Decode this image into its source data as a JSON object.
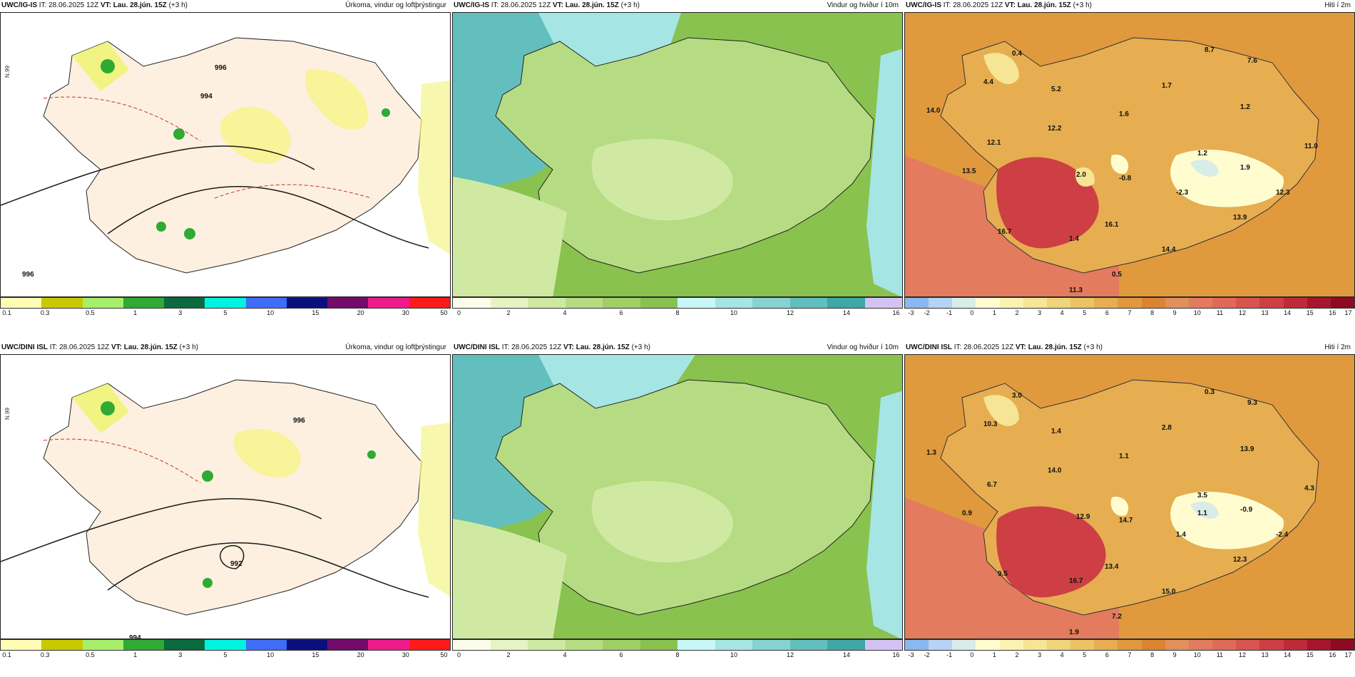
{
  "rows": [
    {
      "model": "UWC/IG-IS",
      "it": "IT: 28.06.2025 12Z",
      "vt": "VT: Lau. 28.jún. 15Z",
      "lead": "(+3 h)",
      "precip_title": "Úrkoma, vindur og loftþrýstingur",
      "wind_title": "Vindur og hviður í 10m",
      "temp_title": "Hiti í 2m",
      "pressure_labels": [
        "994",
        "996",
        "996"
      ],
      "temp_labels": [
        "0.4",
        "8.7",
        "7.6",
        "4.4",
        "5.2",
        "1.7",
        "14.0",
        "1.6",
        "1.2",
        "12.2",
        "12.1",
        "1.2",
        "11.0",
        "13.5",
        "2.0",
        "-0.8",
        "-2.3",
        "1.9",
        "12.3",
        "13.9",
        "16.1",
        "16.7",
        "1.4",
        "14.4",
        "0.5",
        "11.3"
      ]
    },
    {
      "model": "UWC/DINI ISL",
      "it": "IT: 28.06.2025 12Z",
      "vt": "VT: Lau. 28.jún. 15Z",
      "lead": "(+3 h)",
      "precip_title": "Úrkoma, vindur og loftþrýstingur",
      "wind_title": "Vindur og hviður í 10m",
      "temp_title": "Hiti í 2m",
      "pressure_labels": [
        "992",
        "994",
        "996"
      ],
      "temp_labels": [
        "3.0",
        "0.3",
        "9.3",
        "10.3",
        "1.4",
        "2.8",
        "1.3",
        "1.1",
        "13.9",
        "14.0",
        "6.7",
        "3.5",
        "4.3",
        "0.9",
        "12.9",
        "14.7",
        "1.4",
        "-0.9",
        "-2.4",
        "12.3",
        "13.4",
        "9.5",
        "16.7",
        "15.0",
        "7.2",
        "1.9",
        "1.1"
      ]
    }
  ],
  "colorbars": {
    "precip": {
      "colors": [
        "#fffcb3",
        "#c9c900",
        "#a6ef6a",
        "#2faa33",
        "#0a6a3e",
        "#00f2e0",
        "#3e6df8",
        "#0b0f7e",
        "#730b6a",
        "#ef1b8b",
        "#ff1a1a"
      ],
      "labels": [
        "0.1",
        "0.3",
        "0.5",
        "1",
        "3",
        "5",
        "10",
        "15",
        "20",
        "30",
        "50"
      ]
    },
    "wind": {
      "colors": [
        "#fbfdea",
        "#e6f4c4",
        "#cfe9a2",
        "#b6dc83",
        "#9fcf66",
        "#89c24f",
        "#c7f7f7",
        "#a5e6e4",
        "#86d3d1",
        "#62bfbd",
        "#3fa8a6",
        "#d3c3f5"
      ],
      "labels": [
        "0",
        "2",
        "4",
        "6",
        "8",
        "10",
        "12",
        "14",
        "16"
      ]
    },
    "temp": {
      "colors": [
        "#8ab8f0",
        "#b4d3f5",
        "#d8ece8",
        "#fffdd0",
        "#fbf2b0",
        "#f5e594",
        "#f0d47a",
        "#ebc264",
        "#e6ae50",
        "#e1993e",
        "#dc8432",
        "#e0905a",
        "#e37b5e",
        "#e06a58",
        "#d85450",
        "#cd3f44",
        "#bf2a38",
        "#a8152e",
        "#8c0b22"
      ],
      "labels": [
        "-3",
        "-2",
        "-1",
        "0",
        "1",
        "2",
        "3",
        "4",
        "5",
        "6",
        "7",
        "8",
        "9",
        "10",
        "11",
        "12",
        "13",
        "14",
        "15",
        "16",
        "17"
      ]
    }
  },
  "legend_side": {
    "lat_labels": [
      "N.99",
      "N.99"
    ]
  }
}
